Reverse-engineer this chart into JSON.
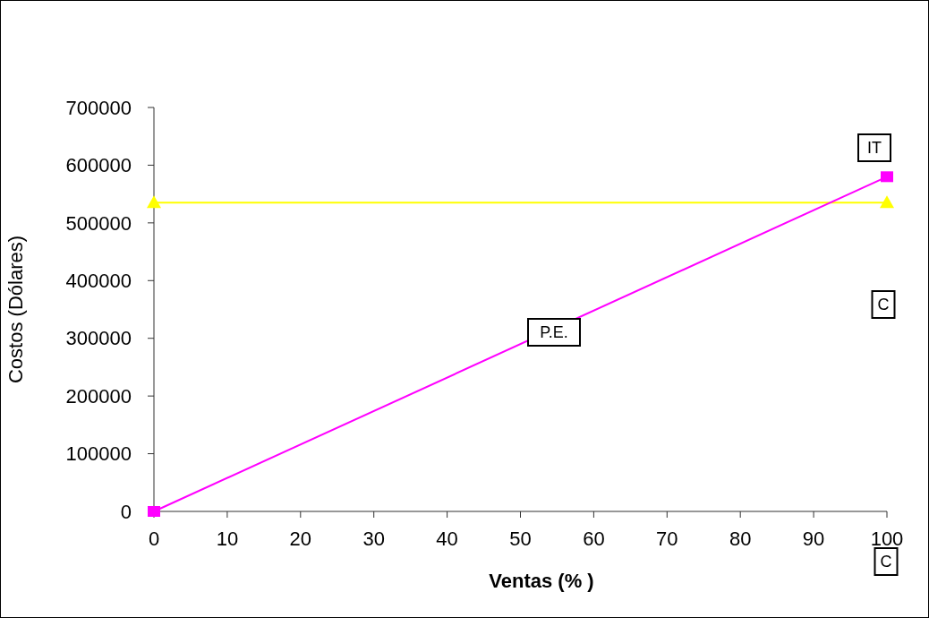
{
  "chart_data": {
    "type": "line",
    "xlabel": "Ventas (% )",
    "ylabel": "Costos (Dólares)",
    "x": [
      0,
      100
    ],
    "xlim": [
      0,
      100
    ],
    "xticks": [
      0,
      10,
      20,
      30,
      40,
      50,
      60,
      70,
      80,
      90,
      100
    ],
    "ylim": [
      0,
      700000
    ],
    "yticks": [
      0,
      100000,
      200000,
      300000,
      400000,
      500000,
      600000,
      700000
    ],
    "grid": false,
    "series": [
      {
        "color": "#ffff00",
        "values": [
          535000,
          535000
        ],
        "marker": "triangle"
      },
      {
        "color": "#ff00ff",
        "values": [
          0,
          580000
        ],
        "marker": "square"
      }
    ],
    "annotations": [
      "IT",
      "C",
      "P.E.",
      "C"
    ]
  }
}
